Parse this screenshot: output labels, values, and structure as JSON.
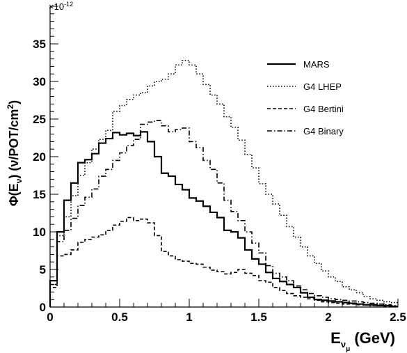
{
  "chart_data": {
    "type": "line",
    "step": true,
    "bin_width": 0.05,
    "xlim": [
      0,
      2.5
    ],
    "ylim": [
      0,
      40
    ],
    "x_ticks": [
      0,
      0.5,
      1,
      1.5,
      2,
      2.5
    ],
    "x_tick_labels": [
      "0",
      "0.5",
      "1",
      "1.5",
      "2",
      "2.5"
    ],
    "y_ticks": [
      0,
      5,
      10,
      15,
      20,
      25,
      30,
      35
    ],
    "y_tick_labels": [
      "0",
      "5",
      "10",
      "15",
      "20",
      "25",
      "30",
      "35"
    ],
    "y_exponent": "×10",
    "y_exponent_power": "-12",
    "ylabel_main": "Φ(E",
    "ylabel_sub": "ν",
    "ylabel_rest": ") (ν/POT/cm",
    "ylabel_sup": "2",
    "ylabel_end": ")",
    "xlabel_main": "E",
    "xlabel_sub": "ν",
    "xlabel_subsub": "μ",
    "xlabel_rest": " (GeV)",
    "legend_position": "top-right",
    "grid": false,
    "series": [
      {
        "name": "MARS",
        "dash": "solid",
        "values": [
          3.5,
          10,
          14.2,
          16.5,
          19.2,
          19.6,
          20.4,
          21.8,
          22.4,
          23.2,
          22.9,
          23.1,
          22.8,
          23.3,
          22,
          20,
          17.8,
          17.4,
          16.3,
          15.6,
          14.5,
          14.1,
          13.4,
          12.6,
          11.9,
          10.2,
          10,
          9.2,
          7.6,
          6.4,
          5.7,
          4.6,
          3.8,
          3.4,
          3,
          2.6,
          1.9,
          1.3,
          1,
          0.9,
          0.8,
          0.7,
          0.6,
          0.5,
          0.4,
          0.3,
          0.3,
          0.2,
          0.2,
          0.1
        ]
      },
      {
        "name": "G4 LHEP",
        "dash": "dotted",
        "values": [
          3,
          9.5,
          12,
          14.8,
          17.5,
          19.2,
          21,
          22.3,
          23.5,
          26,
          26.8,
          27.6,
          28.2,
          28.5,
          29.4,
          30,
          30.3,
          31,
          32.2,
          32.8,
          32.2,
          31,
          29.6,
          28.2,
          27,
          25.3,
          23.9,
          22.2,
          20.3,
          18.5,
          16.4,
          15,
          13.7,
          12.2,
          10.7,
          9.3,
          8,
          6.8,
          5.8,
          4.8,
          4,
          3.4,
          2.7,
          2.3,
          1.9,
          1.4,
          1.1,
          0.9,
          0.7,
          0.6
        ]
      },
      {
        "name": "G4 Bertini",
        "dash": "dashed",
        "values": [
          2.6,
          6.8,
          7,
          7.6,
          8.6,
          9,
          9.3,
          9.6,
          10.2,
          10.9,
          11.4,
          11.9,
          11.5,
          11.7,
          11.2,
          9.5,
          7.4,
          6.8,
          6.3,
          6.1,
          5.8,
          5.7,
          5.3,
          4.9,
          4.7,
          4.4,
          4.6,
          5,
          4.5,
          4.2,
          3.5,
          3.3,
          2.6,
          2.2,
          1.8,
          1.5,
          1.3,
          1.1,
          0.9,
          0.7,
          0.6,
          0.5,
          0.4,
          0.4,
          0.3,
          0.3,
          0.2,
          0.2,
          0.1,
          0.1
        ]
      },
      {
        "name": "G4 Binary",
        "dash": "dashdot",
        "values": [
          3,
          8.7,
          10.2,
          11.8,
          13.5,
          14.6,
          15.7,
          17.4,
          18.3,
          19.5,
          20.5,
          21.5,
          22.3,
          24.3,
          24.6,
          24.8,
          24.1,
          23.3,
          23.6,
          23.8,
          22,
          21.2,
          19.5,
          18.3,
          16.5,
          14.2,
          12.7,
          11.5,
          10,
          8.5,
          7.2,
          5.5,
          4.5,
          4,
          3.5,
          2.8,
          2.3,
          1.8,
          1.5,
          1.3,
          1.1,
          1,
          0.9,
          0.8,
          0.7,
          0.6,
          0.5,
          0.4,
          0.3,
          0.2
        ]
      }
    ]
  }
}
